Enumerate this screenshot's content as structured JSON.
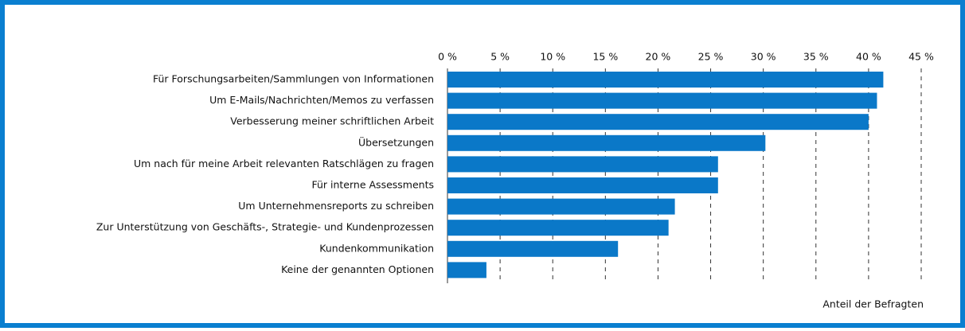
{
  "chart_data": {
    "type": "bar",
    "orientation": "horizontal",
    "categories": [
      "Für Forschungsarbeiten/Sammlungen von Informationen",
      "Um E-Mails/Nachrichten/Memos zu verfassen",
      "Verbesserung meiner schriftlichen Arbeit",
      "Übersetzungen",
      "Um nach für meine Arbeit relevanten Ratschlägen zu fragen",
      "Für interne Assessments",
      "Um Unternehmensreports zu schreiben",
      "Zur Unterstützung von Geschäfts-, Strategie- und Kundenprozessen",
      "Kundenkommunikation",
      "Keine der genannten Optionen"
    ],
    "values": [
      41.4,
      40.8,
      40.0,
      30.2,
      25.7,
      25.7,
      21.6,
      21.0,
      16.2,
      3.7
    ],
    "color": "#0a78c8",
    "xlim": [
      0,
      45
    ],
    "xticks": [
      {
        "value": 0,
        "label": "0 %"
      },
      {
        "value": 5,
        "label": "5 %"
      },
      {
        "value": 10,
        "label": "10 %"
      },
      {
        "value": 15,
        "label": "15 %"
      },
      {
        "value": 20,
        "label": "20 %"
      },
      {
        "value": 25,
        "label": "25 %"
      },
      {
        "value": 30,
        "label": "30 %"
      },
      {
        "value": 35,
        "label": "35 %"
      },
      {
        "value": 40,
        "label": "40 %"
      },
      {
        "value": 45,
        "label": "45 %"
      }
    ],
    "xlabel": "Anteil der Befragten",
    "grid": true
  }
}
